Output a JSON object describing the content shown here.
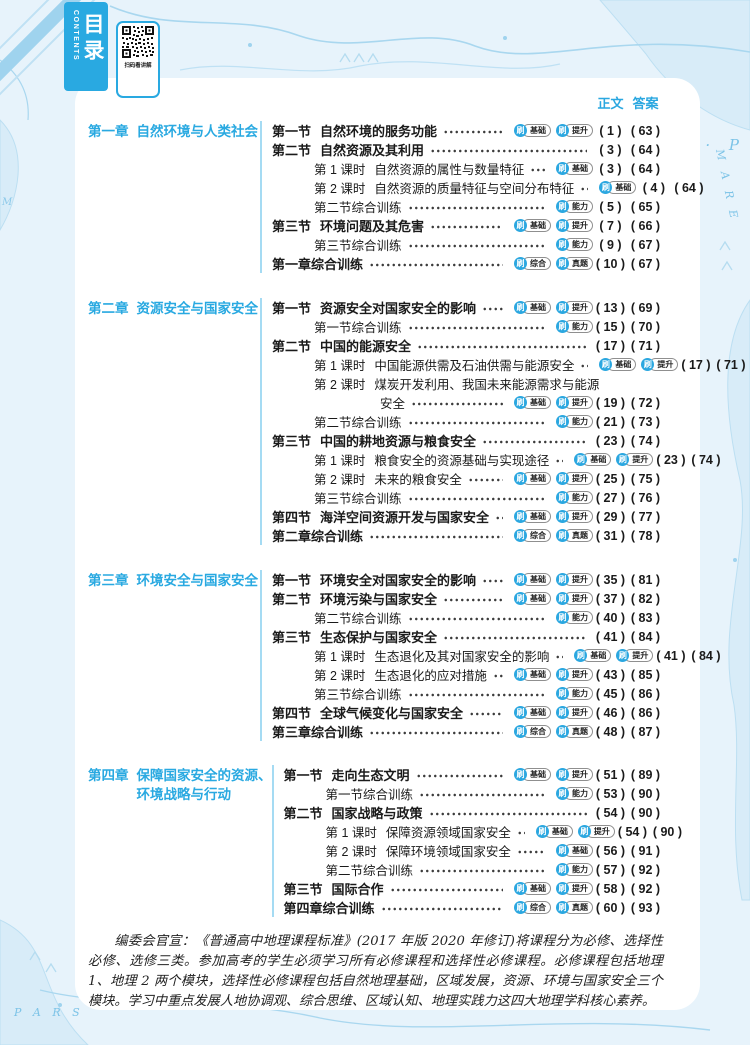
{
  "accent_color": "#29a9e1",
  "divider_color": "#a5dbf3",
  "header": {
    "toc_cn": "目录",
    "toc_en": "CONTENTS",
    "qr_caption": "扫码看讲解",
    "body_col_label": "正文",
    "answer_col_label": "答案"
  },
  "badge_icon": "刷",
  "chapters": [
    {
      "number": "第一章",
      "title": "自然环境与人类社会",
      "title_line2": "",
      "rows": [
        {
          "type": "section",
          "label": "第一节",
          "title": "自然环境的服务功能",
          "badges": [
            "基础",
            "提升"
          ],
          "text_page": "1",
          "answer_page": "63"
        },
        {
          "type": "section",
          "label": "第二节",
          "title": "自然资源及其利用",
          "badges": [],
          "text_page": "3",
          "answer_page": "64"
        },
        {
          "type": "lesson",
          "label": "第 1 课时",
          "title": "自然资源的属性与数量特征",
          "badges": [
            "基础"
          ],
          "text_page": "3",
          "answer_page": "64"
        },
        {
          "type": "lesson",
          "label": "第 2 课时",
          "title": "自然资源的质量特征与空间分布特征",
          "badges": [
            "基础"
          ],
          "text_page": "4",
          "answer_page": "64"
        },
        {
          "type": "training",
          "label": "",
          "title": "第二节综合训练",
          "badges": [
            "能力"
          ],
          "text_page": "5",
          "answer_page": "65"
        },
        {
          "type": "section",
          "label": "第三节",
          "title": "环境问题及其危害",
          "badges": [
            "基础",
            "提升"
          ],
          "text_page": "7",
          "answer_page": "66"
        },
        {
          "type": "training",
          "label": "",
          "title": "第三节综合训练",
          "badges": [
            "能力"
          ],
          "text_page": "9",
          "answer_page": "67"
        },
        {
          "type": "chaptertraining",
          "label": "",
          "title": "第一章综合训练",
          "badges": [
            "综合",
            "真题"
          ],
          "text_page": "10",
          "answer_page": "67"
        }
      ]
    },
    {
      "number": "第二章",
      "title": "资源安全与国家安全",
      "title_line2": "",
      "rows": [
        {
          "type": "section",
          "label": "第一节",
          "title": "资源安全对国家安全的影响",
          "badges": [
            "基础",
            "提升"
          ],
          "text_page": "13",
          "answer_page": "69"
        },
        {
          "type": "training",
          "label": "",
          "title": "第一节综合训练",
          "badges": [
            "能力"
          ],
          "text_page": "15",
          "answer_page": "70"
        },
        {
          "type": "section",
          "label": "第二节",
          "title": "中国的能源安全",
          "badges": [],
          "text_page": "17",
          "answer_page": "71"
        },
        {
          "type": "lesson",
          "label": "第 1 课时",
          "title": "中国能源供需及石油供需与能源安全",
          "badges": [
            "基础",
            "提升"
          ],
          "text_page": "17",
          "answer_page": "71"
        },
        {
          "type": "lesson-wrap",
          "label": "第 2 课时",
          "title": "煤炭开发利用、我国未来能源需求与能源",
          "badges": [],
          "text_page": "",
          "answer_page": ""
        },
        {
          "type": "continuation",
          "label": "",
          "title": "安全",
          "badges": [
            "基础",
            "提升"
          ],
          "text_page": "19",
          "answer_page": "72"
        },
        {
          "type": "training",
          "label": "",
          "title": "第二节综合训练",
          "badges": [
            "能力"
          ],
          "text_page": "21",
          "answer_page": "73"
        },
        {
          "type": "section",
          "label": "第三节",
          "title": "中国的耕地资源与粮食安全",
          "badges": [],
          "text_page": "23",
          "answer_page": "74"
        },
        {
          "type": "lesson",
          "label": "第 1 课时",
          "title": "粮食安全的资源基础与实现途径",
          "badges": [
            "基础",
            "提升"
          ],
          "text_page": "23",
          "answer_page": "74"
        },
        {
          "type": "lesson",
          "label": "第 2 课时",
          "title": "未来的粮食安全",
          "badges": [
            "基础",
            "提升"
          ],
          "text_page": "25",
          "answer_page": "75"
        },
        {
          "type": "training",
          "label": "",
          "title": "第三节综合训练",
          "badges": [
            "能力"
          ],
          "text_page": "27",
          "answer_page": "76"
        },
        {
          "type": "section",
          "label": "第四节",
          "title": "海洋空间资源开发与国家安全",
          "badges": [
            "基础",
            "提升"
          ],
          "text_page": "29",
          "answer_page": "77"
        },
        {
          "type": "chaptertraining",
          "label": "",
          "title": "第二章综合训练",
          "badges": [
            "综合",
            "真题"
          ],
          "text_page": "31",
          "answer_page": "78"
        }
      ]
    },
    {
      "number": "第三章",
      "title": "环境安全与国家安全",
      "title_line2": "",
      "rows": [
        {
          "type": "section",
          "label": "第一节",
          "title": "环境安全对国家安全的影响",
          "badges": [
            "基础",
            "提升"
          ],
          "text_page": "35",
          "answer_page": "81"
        },
        {
          "type": "section",
          "label": "第二节",
          "title": "环境污染与国家安全",
          "badges": [
            "基础",
            "提升"
          ],
          "text_page": "37",
          "answer_page": "82"
        },
        {
          "type": "training",
          "label": "",
          "title": "第二节综合训练",
          "badges": [
            "能力"
          ],
          "text_page": "40",
          "answer_page": "83"
        },
        {
          "type": "section",
          "label": "第三节",
          "title": "生态保护与国家安全",
          "badges": [],
          "text_page": "41",
          "answer_page": "84"
        },
        {
          "type": "lesson",
          "label": "第 1 课时",
          "title": "生态退化及其对国家安全的影响",
          "badges": [
            "基础",
            "提升"
          ],
          "text_page": "41",
          "answer_page": "84"
        },
        {
          "type": "lesson",
          "label": "第 2 课时",
          "title": "生态退化的应对措施",
          "badges": [
            "基础",
            "提升"
          ],
          "text_page": "43",
          "answer_page": "85"
        },
        {
          "type": "training",
          "label": "",
          "title": "第三节综合训练",
          "badges": [
            "能力"
          ],
          "text_page": "45",
          "answer_page": "86"
        },
        {
          "type": "section",
          "label": "第四节",
          "title": "全球气候变化与国家安全",
          "badges": [
            "基础",
            "提升"
          ],
          "text_page": "46",
          "answer_page": "86"
        },
        {
          "type": "chaptertraining",
          "label": "",
          "title": "第三章综合训练",
          "badges": [
            "综合",
            "真题"
          ],
          "text_page": "48",
          "answer_page": "87"
        }
      ]
    },
    {
      "number": "第四章",
      "title": "保障国家安全的资源、",
      "title_line2": "环境战略与行动",
      "rows": [
        {
          "type": "section",
          "label": "第一节",
          "title": "走向生态文明",
          "badges": [
            "基础",
            "提升"
          ],
          "text_page": "51",
          "answer_page": "89"
        },
        {
          "type": "training",
          "label": "",
          "title": "第一节综合训练",
          "badges": [
            "能力"
          ],
          "text_page": "53",
          "answer_page": "90"
        },
        {
          "type": "section",
          "label": "第二节",
          "title": "国家战略与政策",
          "badges": [],
          "text_page": "54",
          "answer_page": "90"
        },
        {
          "type": "lesson",
          "label": "第 1 课时",
          "title": "保障资源领域国家安全",
          "badges": [
            "基础",
            "提升"
          ],
          "text_page": "54",
          "answer_page": "90"
        },
        {
          "type": "lesson",
          "label": "第 2 课时",
          "title": "保障环境领域国家安全",
          "badges": [
            "基础"
          ],
          "text_page": "56",
          "answer_page": "91"
        },
        {
          "type": "training",
          "label": "",
          "title": "第二节综合训练",
          "badges": [
            "能力"
          ],
          "text_page": "57",
          "answer_page": "92"
        },
        {
          "type": "section",
          "label": "第三节",
          "title": "国际合作",
          "badges": [
            "基础",
            "提升"
          ],
          "text_page": "58",
          "answer_page": "92"
        },
        {
          "type": "chaptertraining",
          "label": "",
          "title": "第四章综合训练",
          "badges": [
            "综合",
            "真题"
          ],
          "text_page": "60",
          "answer_page": "93"
        }
      ]
    }
  ],
  "footer": {
    "text": "编委会官宣：《普通高中地理课程标准》(2017 年版 2020 年修订)将课程分为必修、选择性必修、选修三类。参加高考的学生必须学习所有必修课程和选择性必修课程。必修课程包括地理 1、地理 2 两个模块，选择性必修课程包括自然地理基础，区域发展，资源、环境与国家安全三个模块。学习中重点发展人地协调观、综合思维、区域认知、地理实践力这四大地理学科核心素养。"
  },
  "map_labels": {
    "top_right": "T A R T A R I Æ · P A R",
    "right_side": "M A R E",
    "bottom_left": "P A R S"
  }
}
